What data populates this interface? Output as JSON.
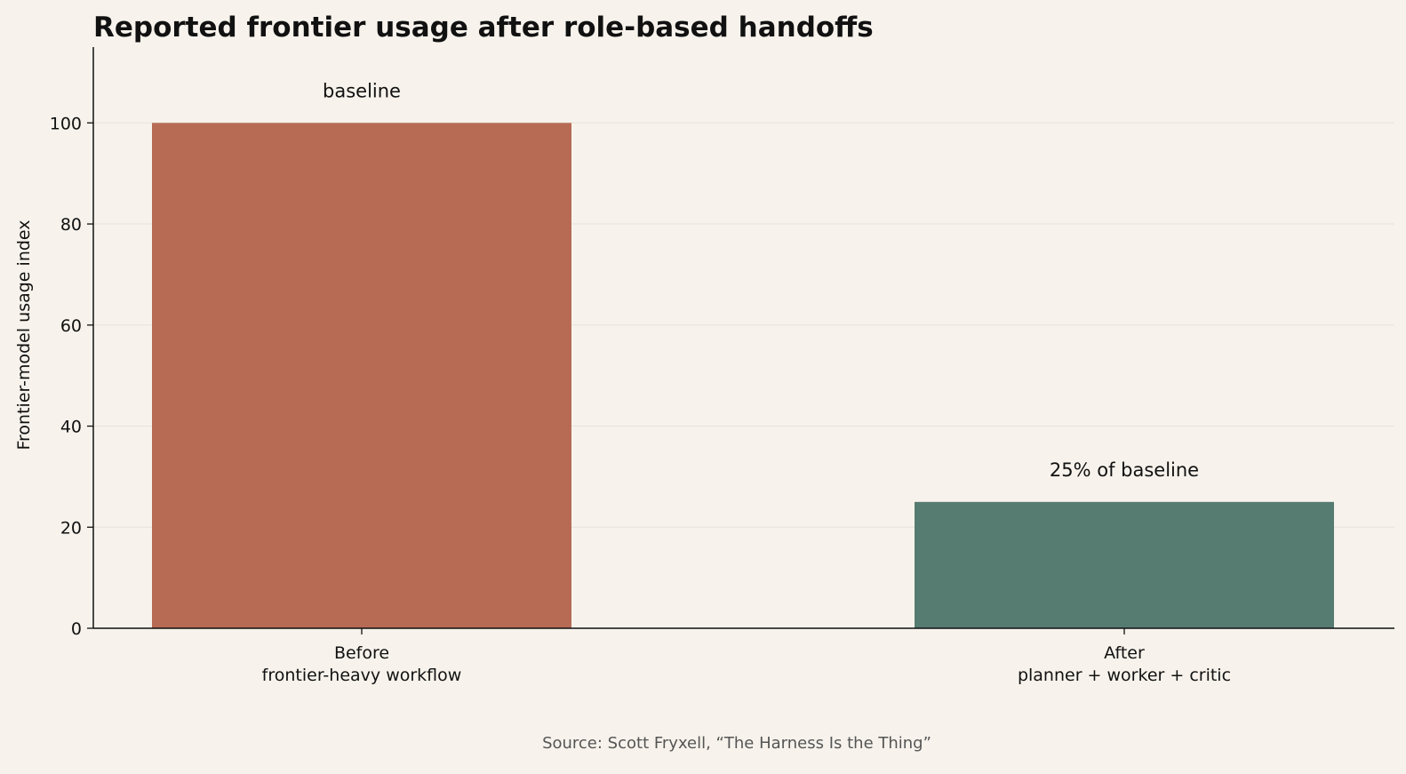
{
  "chart_data": {
    "type": "bar",
    "title": "Reported frontier usage after role-based handoffs",
    "xlabel": "",
    "ylabel": "Frontier-model usage index",
    "categories": [
      [
        "Before",
        "frontier-heavy workflow"
      ],
      [
        "After",
        "planner + worker + critic"
      ]
    ],
    "values": [
      100,
      25
    ],
    "data_labels": [
      "baseline",
      "25% of baseline"
    ],
    "colors": [
      "#b76b55",
      "#567c72"
    ],
    "ylim": [
      0,
      115
    ],
    "yticks": [
      0,
      20,
      40,
      60,
      80,
      100
    ],
    "grid": "y",
    "legend": "none"
  },
  "footer": {
    "source": "Source: Scott Fryxell, “The Harness Is the Thing”"
  }
}
